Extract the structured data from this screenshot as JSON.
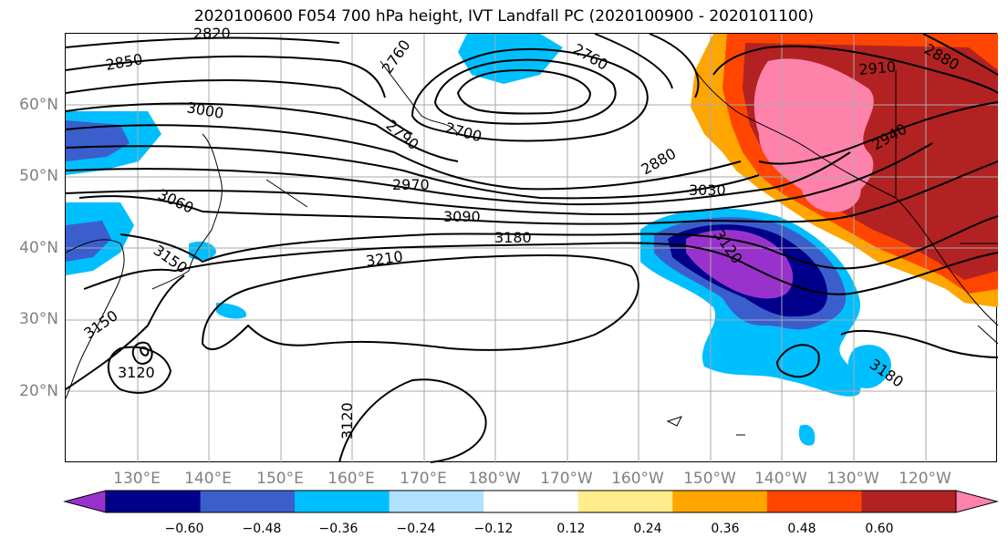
{
  "title": "2020100600 F054 700 hPa height, IVT Landfall PC (2020100900 - 2020101100)",
  "lat_labels": [
    "60°N",
    "50°N",
    "40°N",
    "30°N",
    "20°N"
  ],
  "lon_labels": [
    "130°E",
    "140°E",
    "150°E",
    "160°E",
    "170°E",
    "180°W",
    "170°W",
    "160°W",
    "150°W",
    "140°W",
    "130°W",
    "120°W"
  ],
  "contour_labels": {
    "c2820": "2820",
    "c2850": "2850",
    "c2760a": "2760",
    "c2760b": "2760",
    "c3000": "3000",
    "c2790": "2790",
    "c2700": "2700",
    "c2880a": "2880",
    "c2910": "2910",
    "c2940": "2940",
    "c2880b": "2880",
    "c3060": "3060",
    "c2970": "2970",
    "c3030": "3030",
    "c3090": "3090",
    "c3180a": "3180",
    "c3120a": "3120",
    "c3150a": "3150",
    "c3210": "3210",
    "c3150b": "3150",
    "c3120b": "3120",
    "c3120c": "3120",
    "c3180b": "3180"
  },
  "colorbar": {
    "ticks": [
      "−0.60",
      "−0.48",
      "−0.36",
      "−0.24",
      "−0.12",
      "0.12",
      "0.24",
      "0.36",
      "0.48",
      "0.60"
    ],
    "colors": [
      "#9932cc",
      "#00008b",
      "#3a5fcd",
      "#00bfff",
      "#b0e2ff",
      "#ffffff",
      "#ffec8b",
      "#ffa500",
      "#ff4500",
      "#b22222",
      "#ff82ab"
    ]
  }
}
